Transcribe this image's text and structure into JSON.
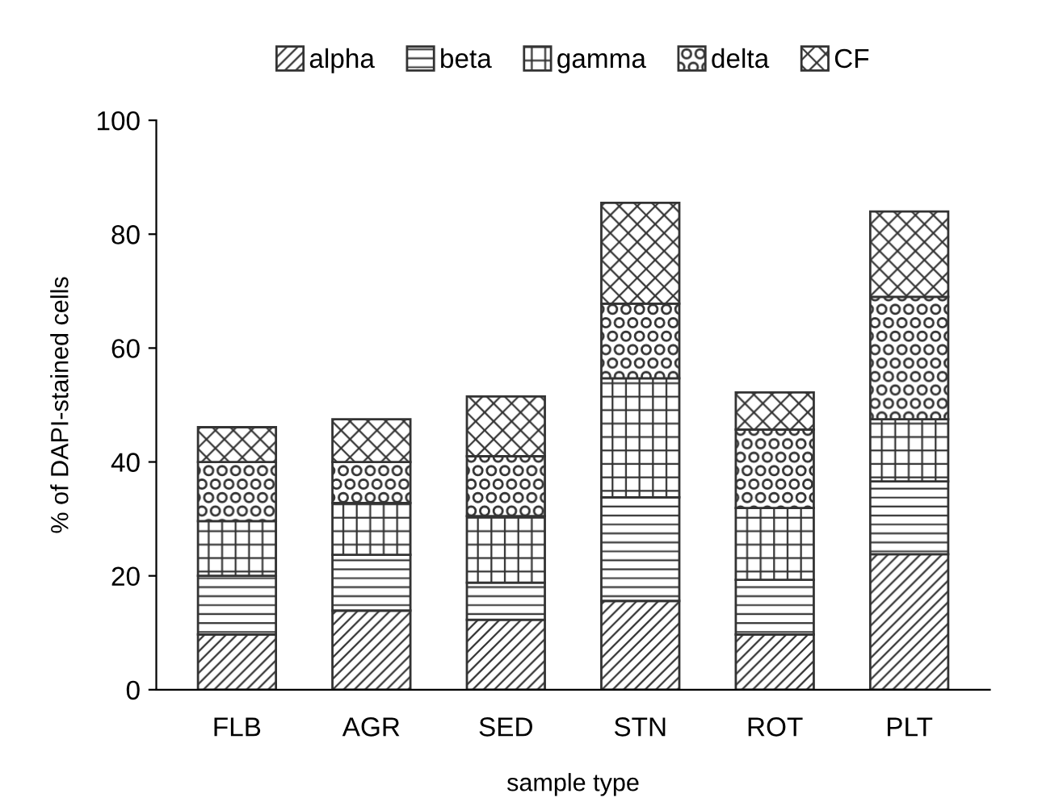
{
  "chart_data": {
    "type": "bar",
    "stacked": true,
    "xlabel": "sample type",
    "ylabel": "% of DAPI-stained cells",
    "categories": [
      "FLB",
      "AGR",
      "SED",
      "STN",
      "ROT",
      "PLT"
    ],
    "series": [
      {
        "name": "alpha",
        "color": "#333333",
        "values": [
          9.7,
          13.9,
          12.3,
          15.6,
          9.7,
          23.8
        ]
      },
      {
        "name": "beta",
        "color": "#333333",
        "values": [
          10.3,
          9.8,
          6.5,
          18.2,
          9.6,
          12.8
        ]
      },
      {
        "name": "gamma",
        "color": "#333333",
        "values": [
          9.6,
          9.1,
          11.7,
          20.9,
          12.6,
          10.9
        ]
      },
      {
        "name": "delta",
        "color": "#333333",
        "values": [
          10.4,
          7.2,
          10.5,
          13.1,
          13.8,
          21.5
        ]
      },
      {
        "name": "CF",
        "color": "#333333",
        "values": [
          6.1,
          7.5,
          10.5,
          17.7,
          6.5,
          15.0
        ]
      }
    ],
    "ylim": [
      0,
      100
    ],
    "yticks": [
      0,
      20,
      40,
      60,
      80,
      100
    ],
    "grid": false,
    "legend": "top"
  }
}
